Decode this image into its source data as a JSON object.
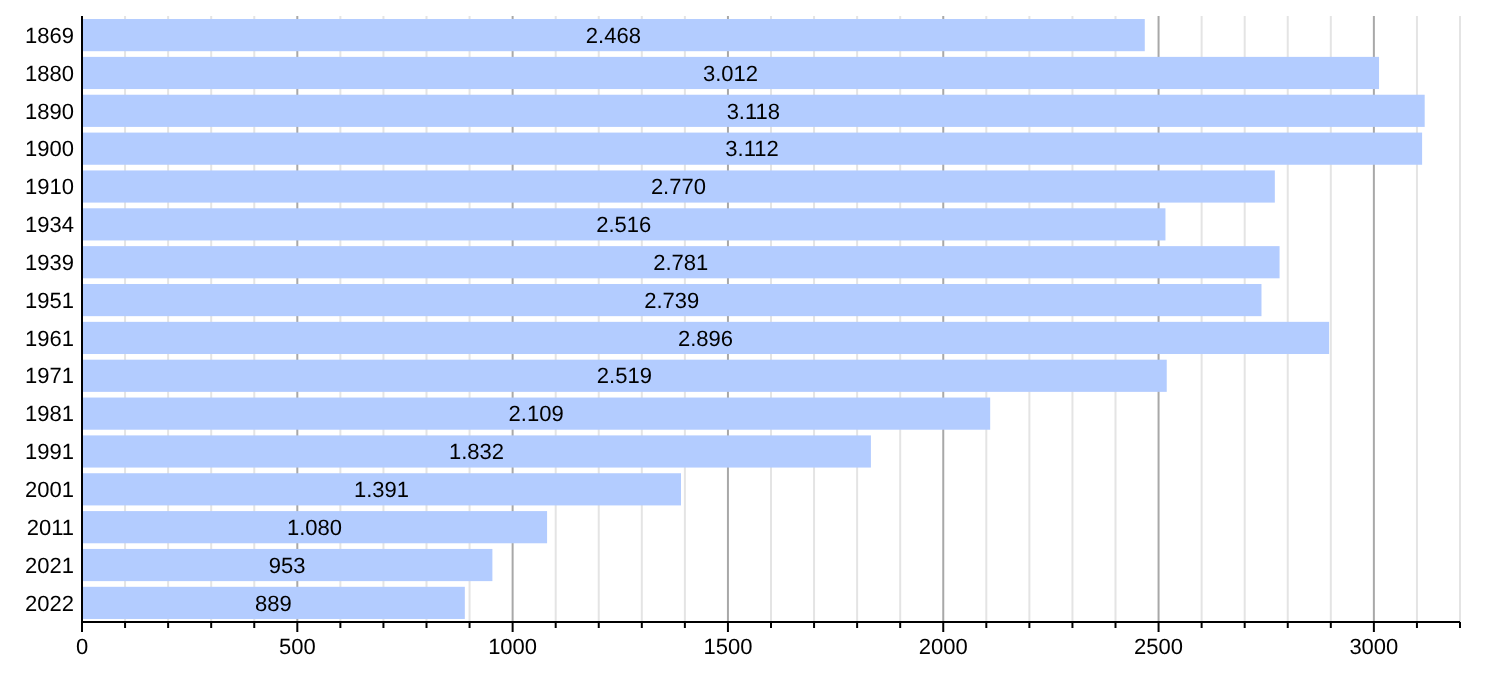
{
  "chart_data": {
    "type": "bar",
    "orientation": "horizontal",
    "categories": [
      "1869",
      "1880",
      "1890",
      "1900",
      "1910",
      "1934",
      "1939",
      "1951",
      "1961",
      "1971",
      "1981",
      "1991",
      "2001",
      "2011",
      "2021",
      "2022"
    ],
    "values": [
      2468,
      3012,
      3118,
      3112,
      2770,
      2516,
      2781,
      2739,
      2896,
      2519,
      2109,
      1832,
      1391,
      1080,
      953,
      889
    ],
    "value_labels": [
      "2.468",
      "3.012",
      "3.118",
      "3.112",
      "2.770",
      "2.516",
      "2.781",
      "2.739",
      "2.896",
      "2.519",
      "2.109",
      "1.832",
      "1.391",
      "1.080",
      "953",
      "889"
    ],
    "color": "#b3ccff",
    "xlim": [
      0,
      3200
    ],
    "xticks": [
      0,
      {
        "value": 100,
        "label": null
      },
      {
        "value": 200,
        "label": null
      },
      {
        "value": 300,
        "label": null
      },
      {
        "value": 400,
        "label": null
      },
      500,
      {
        "value": 600,
        "label": null
      },
      {
        "value": 700,
        "label": null
      },
      {
        "value": 800,
        "label": null
      },
      {
        "value": 900,
        "label": null
      },
      1000,
      {
        "value": 1100,
        "label": null
      },
      {
        "value": 1200,
        "label": null
      },
      {
        "value": 1300,
        "label": null
      },
      {
        "value": 1400,
        "label": null
      },
      1500,
      {
        "value": 1600,
        "label": null
      },
      {
        "value": 1700,
        "label": null
      },
      {
        "value": 1800,
        "label": null
      },
      {
        "value": 1900,
        "label": null
      },
      2000,
      {
        "value": 2100,
        "label": null
      },
      {
        "value": 2200,
        "label": null
      },
      {
        "value": 2300,
        "label": null
      },
      {
        "value": 2400,
        "label": null
      },
      2500,
      {
        "value": 2600,
        "label": null
      },
      {
        "value": 2700,
        "label": null
      },
      {
        "value": 2800,
        "label": null
      },
      {
        "value": 2900,
        "label": null
      },
      3000,
      {
        "value": 3100,
        "label": null
      },
      {
        "value": 3200,
        "label": null
      }
    ],
    "grid": "x"
  }
}
